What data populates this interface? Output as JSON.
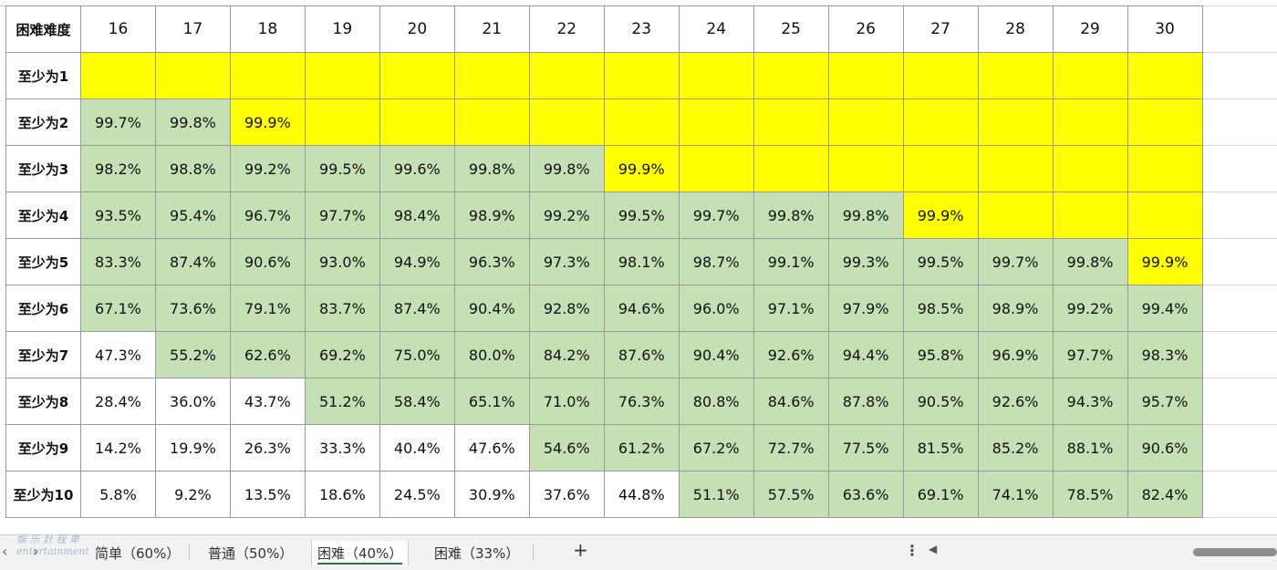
{
  "table": {
    "corner": "困难难度",
    "columns": [
      "16",
      "17",
      "18",
      "19",
      "20",
      "21",
      "22",
      "23",
      "24",
      "25",
      "26",
      "27",
      "28",
      "29",
      "30"
    ],
    "rows": [
      {
        "label": "至少为1",
        "cells": [
          "",
          "",
          "",
          "",
          "",
          "",
          "",
          "",
          "",
          "",
          "",
          "",
          "",
          "",
          ""
        ],
        "fills": [
          "y",
          "y",
          "y",
          "y",
          "y",
          "y",
          "y",
          "y",
          "y",
          "y",
          "y",
          "y",
          "y",
          "y",
          "y"
        ]
      },
      {
        "label": "至少为2",
        "cells": [
          "99.7%",
          "99.8%",
          "99.9%",
          "",
          "",
          "",
          "",
          "",
          "",
          "",
          "",
          "",
          "",
          "",
          ""
        ],
        "fills": [
          "g",
          "g",
          "y",
          "y",
          "y",
          "y",
          "y",
          "y",
          "y",
          "y",
          "y",
          "y",
          "y",
          "y",
          "y"
        ]
      },
      {
        "label": "至少为3",
        "cells": [
          "98.2%",
          "98.8%",
          "99.2%",
          "99.5%",
          "99.6%",
          "99.8%",
          "99.8%",
          "99.9%",
          "",
          "",
          "",
          "",
          "",
          "",
          ""
        ],
        "fills": [
          "g",
          "g",
          "g",
          "g",
          "g",
          "g",
          "g",
          "y",
          "y",
          "y",
          "y",
          "y",
          "y",
          "y",
          "y"
        ]
      },
      {
        "label": "至少为4",
        "cells": [
          "93.5%",
          "95.4%",
          "96.7%",
          "97.7%",
          "98.4%",
          "98.9%",
          "99.2%",
          "99.5%",
          "99.7%",
          "99.8%",
          "99.8%",
          "99.9%",
          "",
          "",
          ""
        ],
        "fills": [
          "g",
          "g",
          "g",
          "g",
          "g",
          "g",
          "g",
          "g",
          "g",
          "g",
          "g",
          "y",
          "y",
          "y",
          "y"
        ]
      },
      {
        "label": "至少为5",
        "cells": [
          "83.3%",
          "87.4%",
          "90.6%",
          "93.0%",
          "94.9%",
          "96.3%",
          "97.3%",
          "98.1%",
          "98.7%",
          "99.1%",
          "99.3%",
          "99.5%",
          "99.7%",
          "99.8%",
          "99.9%"
        ],
        "fills": [
          "g",
          "g",
          "g",
          "g",
          "g",
          "g",
          "g",
          "g",
          "g",
          "g",
          "g",
          "g",
          "g",
          "g",
          "y"
        ]
      },
      {
        "label": "至少为6",
        "cells": [
          "67.1%",
          "73.6%",
          "79.1%",
          "83.7%",
          "87.4%",
          "90.4%",
          "92.8%",
          "94.6%",
          "96.0%",
          "97.1%",
          "97.9%",
          "98.5%",
          "98.9%",
          "99.2%",
          "99.4%"
        ],
        "fills": [
          "g",
          "g",
          "g",
          "g",
          "g",
          "g",
          "g",
          "g",
          "g",
          "g",
          "g",
          "g",
          "g",
          "g",
          "g"
        ]
      },
      {
        "label": "至少为7",
        "cells": [
          "47.3%",
          "55.2%",
          "62.6%",
          "69.2%",
          "75.0%",
          "80.0%",
          "84.2%",
          "87.6%",
          "90.4%",
          "92.6%",
          "94.4%",
          "95.8%",
          "96.9%",
          "97.7%",
          "98.3%"
        ],
        "fills": [
          "w",
          "g",
          "g",
          "g",
          "g",
          "g",
          "g",
          "g",
          "g",
          "g",
          "g",
          "g",
          "g",
          "g",
          "g"
        ]
      },
      {
        "label": "至少为8",
        "cells": [
          "28.4%",
          "36.0%",
          "43.7%",
          "51.2%",
          "58.4%",
          "65.1%",
          "71.0%",
          "76.3%",
          "80.8%",
          "84.6%",
          "87.8%",
          "90.5%",
          "92.6%",
          "94.3%",
          "95.7%"
        ],
        "fills": [
          "w",
          "w",
          "w",
          "g",
          "g",
          "g",
          "g",
          "g",
          "g",
          "g",
          "g",
          "g",
          "g",
          "g",
          "g"
        ]
      },
      {
        "label": "至少为9",
        "cells": [
          "14.2%",
          "19.9%",
          "26.3%",
          "33.3%",
          "40.4%",
          "47.6%",
          "54.6%",
          "61.2%",
          "67.2%",
          "72.7%",
          "77.5%",
          "81.5%",
          "85.2%",
          "88.1%",
          "90.6%"
        ],
        "fills": [
          "w",
          "w",
          "w",
          "w",
          "w",
          "w",
          "g",
          "g",
          "g",
          "g",
          "g",
          "g",
          "g",
          "g",
          "g"
        ]
      },
      {
        "label": "至少为10",
        "cells": [
          "5.8%",
          "9.2%",
          "13.5%",
          "18.6%",
          "24.5%",
          "30.9%",
          "37.6%",
          "44.8%",
          "51.1%",
          "57.5%",
          "63.6%",
          "69.1%",
          "74.1%",
          "78.5%",
          "82.4%"
        ],
        "fills": [
          "w",
          "w",
          "w",
          "w",
          "w",
          "w",
          "w",
          "w",
          "g",
          "g",
          "g",
          "g",
          "g",
          "g",
          "g"
        ]
      }
    ]
  },
  "tabs": {
    "sheets": [
      {
        "label": "简单（60%）",
        "active": false
      },
      {
        "label": "普通（50%）",
        "active": false
      },
      {
        "label": "困难（40%）",
        "active": true
      },
      {
        "label": "困难（33%）",
        "active": false
      }
    ],
    "add_icon": "+",
    "more_icon": "⋮",
    "nav_prev": "‹",
    "nav_next": "›",
    "scroll_left_icon": "◀",
    "watermark": "娱 乐 計 程 車 entertainment"
  },
  "colors": {
    "yellow": "#ffff00",
    "green": "#c6dfb4",
    "white": "#ffffff",
    "active_tab_underline": "#1e7a45"
  }
}
